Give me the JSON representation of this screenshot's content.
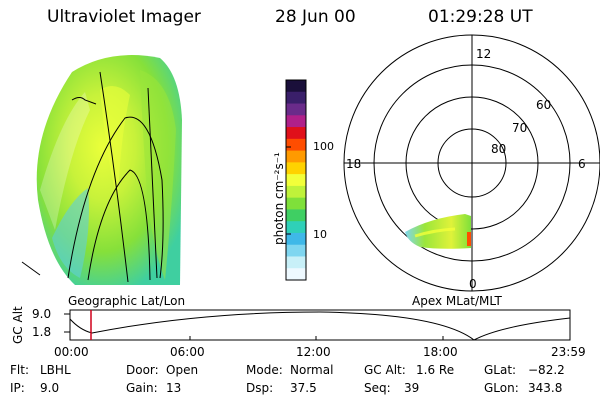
{
  "header": {
    "instrument": "Ultraviolet Imager",
    "date": "28 Jun 00",
    "time": "01:29:28 UT"
  },
  "colorbar": {
    "unit_label": "photon cm⁻²s⁻¹",
    "tick_labels": [
      "100",
      "10"
    ],
    "colors": [
      "#1a0f3a",
      "#3a1f6a",
      "#6a2b8a",
      "#b0208a",
      "#e0101a",
      "#ff4d00",
      "#ff9a00",
      "#ffd200",
      "#f2ff3a",
      "#bff23a",
      "#7fe03a",
      "#3fcf63",
      "#2fd0b8",
      "#3fb8e8",
      "#7fd6f0",
      "#c8f0f8",
      "#eef9ff"
    ]
  },
  "left_panel": {
    "caption": "Geographic Lat/Lon"
  },
  "right_panel": {
    "caption": "Apex MLat/MLT",
    "mlt_labels": [
      "12",
      "18",
      "6",
      "0"
    ],
    "lat_labels": [
      "60",
      "70",
      "80"
    ]
  },
  "alt_plot": {
    "ylabel": "GC Alt",
    "y_ticks": [
      "9.0",
      "1.8"
    ],
    "x_ticks": [
      "00:00",
      "06:00",
      "12:00",
      "18:00",
      "23:59"
    ]
  },
  "footer": {
    "row1": [
      {
        "label": "Flt:",
        "value": "LBHL"
      },
      {
        "label": "Door:",
        "value": "Open"
      },
      {
        "label": "Mode:",
        "value": "Normal"
      },
      {
        "label": "GC Alt:",
        "value": "1.6 Re"
      },
      {
        "label": "GLat:",
        "value": "−82.2"
      }
    ],
    "row2": [
      {
        "label": "IP:",
        "value": "9.0"
      },
      {
        "label": "Gain:",
        "value": "13"
      },
      {
        "label": "Dsp:",
        "value": "37.5"
      },
      {
        "label": "Seq:",
        "value": "39"
      },
      {
        "label": "GLon:",
        "value": "343.8"
      }
    ]
  }
}
